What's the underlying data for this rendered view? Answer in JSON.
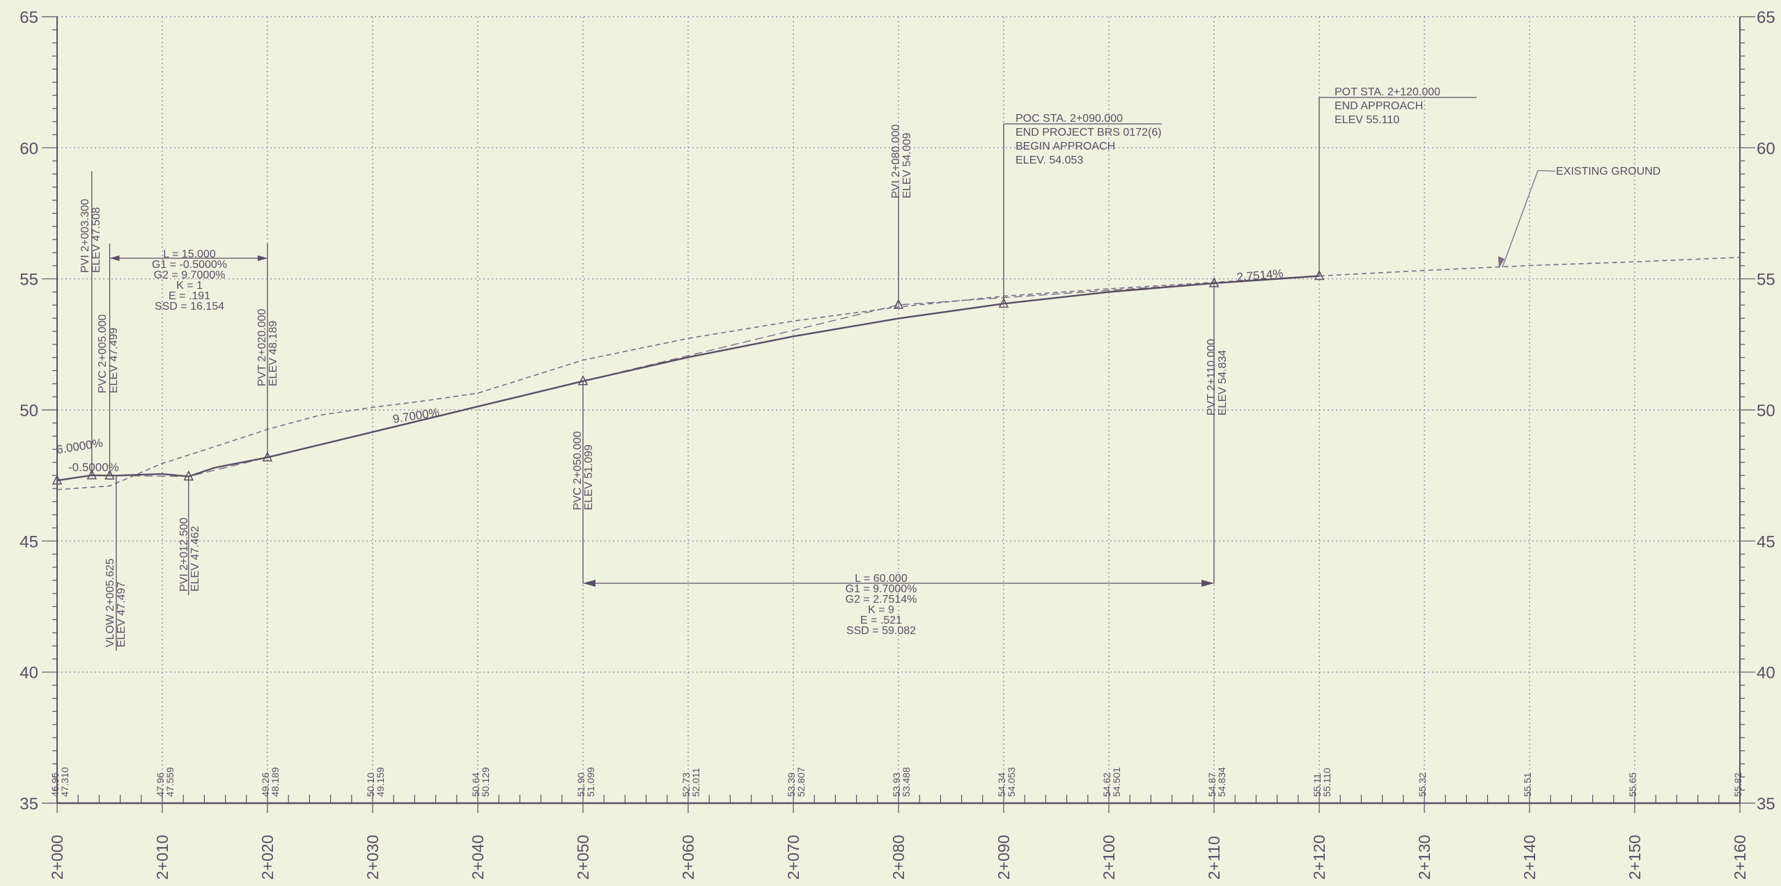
{
  "profile": {
    "x_axis": {
      "min": 2000,
      "max": 2160,
      "step": 10
    },
    "y_axis": {
      "min": 35,
      "max": 65,
      "step": 5
    },
    "station_labels": [
      "2+000",
      "2+010",
      "2+020",
      "2+030",
      "2+040",
      "2+050",
      "2+060",
      "2+070",
      "2+080",
      "2+090",
      "2+100",
      "2+110",
      "2+120",
      "2+130",
      "2+140",
      "2+150",
      "2+160"
    ],
    "elevation_labels": [
      "35",
      "40",
      "45",
      "50",
      "55",
      "60",
      "65"
    ],
    "bottom_values": [
      {
        "sta": 2000,
        "eg": "46.96",
        "fg": "47.310"
      },
      {
        "sta": 2010,
        "eg": "47.96",
        "fg": "47.559"
      },
      {
        "sta": 2020,
        "eg": "49.26",
        "fg": "48.189"
      },
      {
        "sta": 2030,
        "eg": "50.10",
        "fg": "49.159"
      },
      {
        "sta": 2040,
        "eg": "50.64",
        "fg": "50.129"
      },
      {
        "sta": 2050,
        "eg": "51.90",
        "fg": "51.099"
      },
      {
        "sta": 2060,
        "eg": "52.73",
        "fg": "52.011"
      },
      {
        "sta": 2070,
        "eg": "53.39",
        "fg": "52.807"
      },
      {
        "sta": 2080,
        "eg": "53.93",
        "fg": "53.488"
      },
      {
        "sta": 2090,
        "eg": "54.34",
        "fg": "54.053"
      },
      {
        "sta": 2100,
        "eg": "54.62",
        "fg": "54.501"
      },
      {
        "sta": 2110,
        "eg": "54.87",
        "fg": "54.834"
      },
      {
        "sta": 2120,
        "eg": "55.11",
        "fg": "55.110"
      },
      {
        "sta": 2130,
        "eg": "55.32",
        "fg": ""
      },
      {
        "sta": 2140,
        "eg": "55.51",
        "fg": ""
      },
      {
        "sta": 2150,
        "eg": "55.65",
        "fg": ""
      },
      {
        "sta": 2160,
        "eg": "55.82",
        "fg": ""
      }
    ],
    "proposed_profile": [
      [
        2000,
        47.31
      ],
      [
        2003.3,
        47.508
      ],
      [
        2005,
        47.499
      ],
      [
        2005.625,
        47.497
      ],
      [
        2010,
        47.559
      ],
      [
        2012.5,
        47.462
      ],
      [
        2015,
        47.8
      ],
      [
        2020,
        48.189
      ],
      [
        2030,
        49.159
      ],
      [
        2040,
        50.129
      ],
      [
        2050,
        51.099
      ],
      [
        2060,
        52.011
      ],
      [
        2070,
        52.807
      ],
      [
        2080,
        53.488
      ],
      [
        2090,
        54.053
      ],
      [
        2100,
        54.501
      ],
      [
        2110,
        54.834
      ],
      [
        2120,
        55.11
      ]
    ],
    "existing_ground": [
      [
        2000,
        46.96
      ],
      [
        2005,
        47.1
      ],
      [
        2010,
        47.96
      ],
      [
        2015,
        48.6
      ],
      [
        2020,
        49.26
      ],
      [
        2025,
        49.8
      ],
      [
        2030,
        50.1
      ],
      [
        2035,
        50.35
      ],
      [
        2040,
        50.64
      ],
      [
        2050,
        51.9
      ],
      [
        2060,
        52.73
      ],
      [
        2070,
        53.39
      ],
      [
        2080,
        53.93
      ],
      [
        2090,
        54.34
      ],
      [
        2100,
        54.62
      ],
      [
        2110,
        54.87
      ],
      [
        2120,
        55.11
      ],
      [
        2130,
        55.32
      ],
      [
        2140,
        55.51
      ],
      [
        2150,
        55.65
      ],
      [
        2160,
        55.82
      ]
    ],
    "vertices": [
      [
        2000,
        47.31
      ],
      [
        2003.3,
        47.508
      ],
      [
        2005,
        47.499
      ],
      [
        2012.5,
        47.462
      ],
      [
        2020,
        48.189
      ],
      [
        2050,
        51.099
      ],
      [
        2080,
        54.009
      ],
      [
        2090,
        54.053
      ],
      [
        2110,
        54.834
      ],
      [
        2120,
        55.11
      ]
    ],
    "grade_labels": [
      "6.0000%",
      "-0.5000%",
      "9.7000%",
      "2.7514%"
    ],
    "curve1": {
      "pvi": [
        "PVI 2+003.300",
        "ELEV 47.508"
      ],
      "pvc": [
        "PVC 2+005.000",
        "ELEV 47.499"
      ],
      "pvt": [
        "PVT 2+020.000",
        "ELEV 48.189"
      ],
      "low": [
        "VLOW 2+005.625",
        "ELEV 47.497"
      ],
      "pvi2": [
        "PVI 2+012.500",
        "ELEV 47.462"
      ],
      "data": [
        "L = 15.000",
        "G1 = -0.5000%",
        "G2 = 9.7000%",
        "K = 1",
        "E = .191",
        "SSD = 16.154"
      ]
    },
    "curve2": {
      "pvc": [
        "PVC 2+050.000",
        "ELEV 51.099"
      ],
      "pvi": [
        "PVI 2+080.000",
        "ELEV 54.009"
      ],
      "pvt": [
        "PVT 2+110.000",
        "ELEV 54.834"
      ],
      "data": [
        "L = 60.000",
        "G1 = 9.7000%",
        "G2 = 2.7514%",
        "K = 9",
        "E = .521",
        "SSD = 59.082"
      ]
    },
    "poc_callout": [
      "POC STA. 2+090.000",
      "END PROJECT BRS 0172(6)",
      "BEGIN APPROACH",
      "ELEV. 54.053"
    ],
    "pot_callout": [
      "POT STA. 2+120.000",
      "END APPROACH",
      "ELEV 55.110"
    ],
    "existing_ground_label": "EXISTING GROUND",
    "colors": {
      "background": "#eff2df",
      "line": "#5a4f63",
      "grid": "#8a7fa0",
      "ground": "#7a6f86"
    }
  }
}
